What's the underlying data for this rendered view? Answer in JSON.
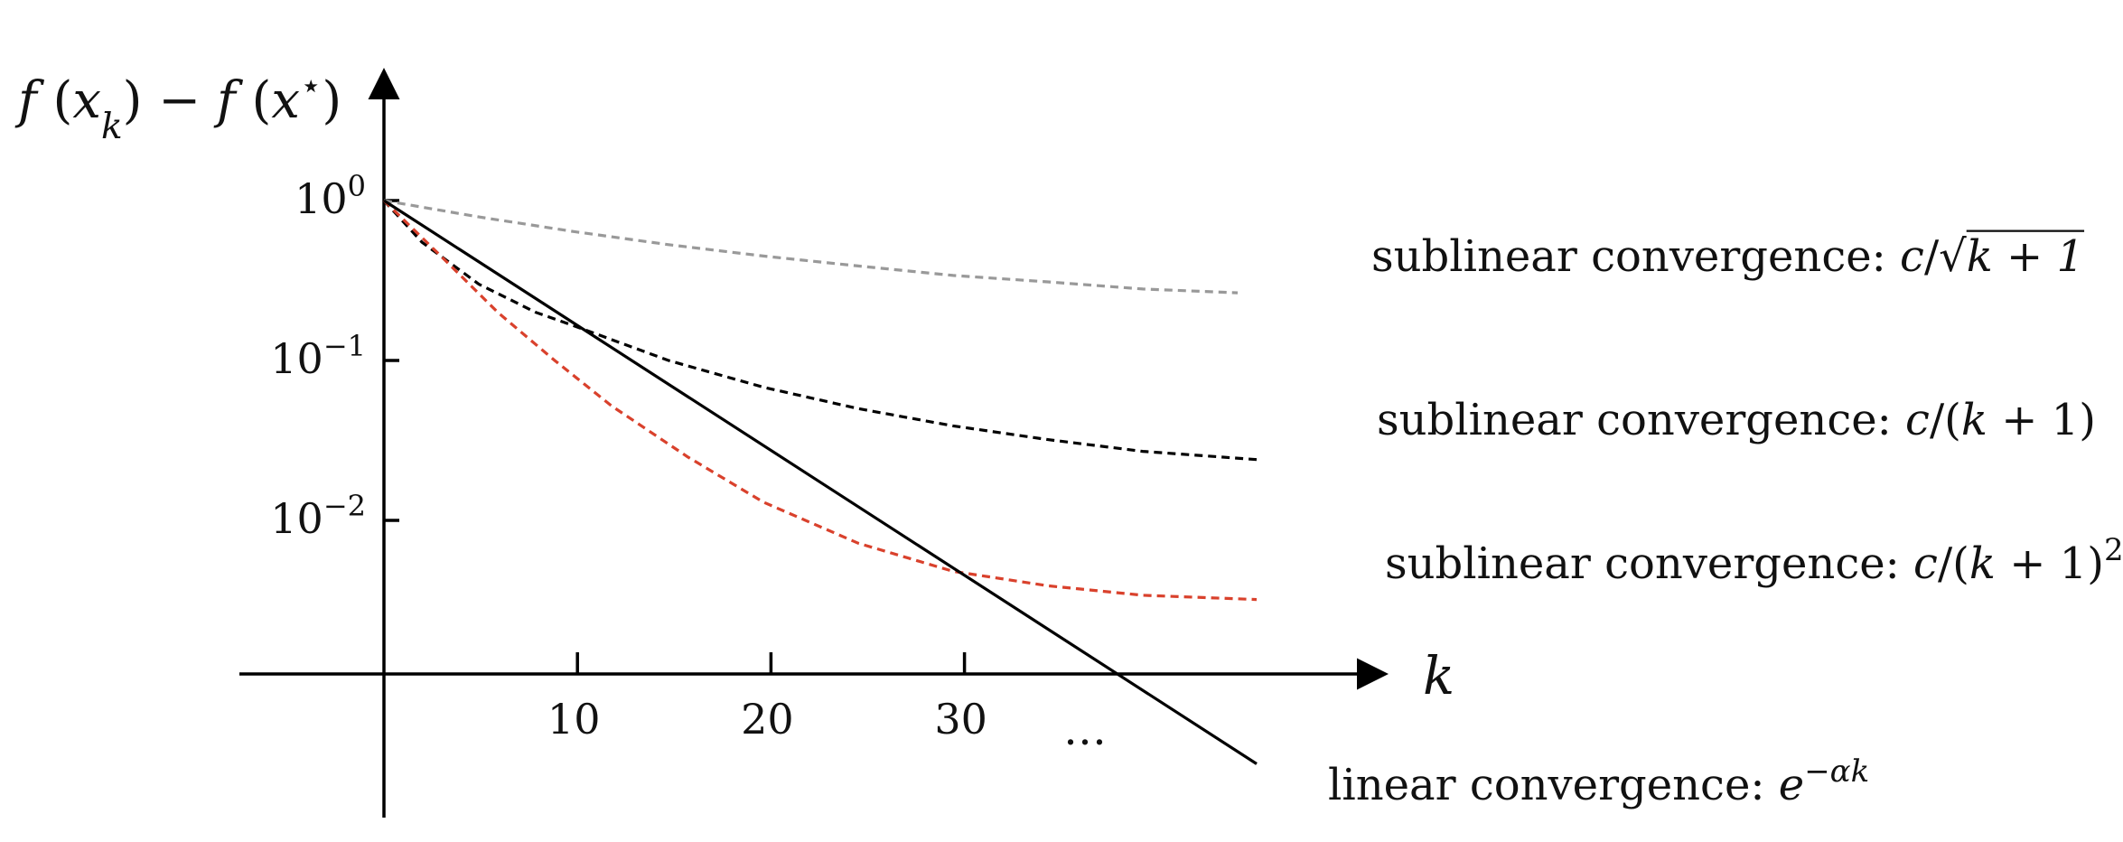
{
  "chart_data": {
    "type": "line",
    "title": "",
    "ylabel": {
      "parts": [
        {
          "t": "f",
          "i": true
        },
        {
          "t": " ("
        },
        {
          "t": "x",
          "i": true
        },
        {
          "t": "k",
          "i": true,
          "sub": true
        },
        {
          "t": ") − "
        },
        {
          "t": "f",
          "i": true
        },
        {
          "t": " ("
        },
        {
          "t": "x",
          "i": true
        },
        {
          "t": "⋆",
          "sup": true
        },
        {
          "t": ")"
        }
      ]
    },
    "xlabel": "k",
    "y_scale": "log",
    "y_ticks": [
      {
        "value": 1,
        "base": "10",
        "exp": "0"
      },
      {
        "value": 0.1,
        "base": "10",
        "exp": "−1"
      },
      {
        "value": 0.01,
        "base": "10",
        "exp": "−2"
      }
    ],
    "x_ticks": [
      10,
      20,
      30
    ],
    "x_ellipsis": "…",
    "xlim": [
      0,
      48
    ],
    "series": [
      {
        "id": "sqrt",
        "style": "dashed",
        "color": "#999999",
        "points": [
          [
            0,
            1.0
          ],
          [
            5,
            0.79
          ],
          [
            10,
            0.64
          ],
          [
            15,
            0.53
          ],
          [
            20,
            0.45
          ],
          [
            25,
            0.39
          ],
          [
            30,
            0.34
          ],
          [
            35,
            0.31
          ],
          [
            40,
            0.28
          ],
          [
            45,
            0.265
          ]
        ],
        "label": [
          {
            "t": "sublinear convergence: "
          },
          {
            "t": "c",
            "i": true
          },
          {
            "t": "/√"
          },
          {
            "t": "k + 1",
            "i": true,
            "over": true
          }
        ]
      },
      {
        "id": "inv",
        "style": "dashed",
        "color": "#000000",
        "points": [
          [
            0,
            1.0
          ],
          [
            2,
            0.55
          ],
          [
            5,
            0.3
          ],
          [
            8,
            0.2
          ],
          [
            10,
            0.165
          ],
          [
            15,
            0.1
          ],
          [
            20,
            0.068
          ],
          [
            25,
            0.05
          ],
          [
            30,
            0.039
          ],
          [
            35,
            0.032
          ],
          [
            40,
            0.027
          ],
          [
            46,
            0.024
          ]
        ],
        "label": [
          {
            "t": "sublinear convergence: "
          },
          {
            "t": "c",
            "i": true
          },
          {
            "t": "/("
          },
          {
            "t": "k",
            "i": true
          },
          {
            "t": " + 1)"
          }
        ]
      },
      {
        "id": "inv2",
        "style": "dashed",
        "color": "#d9412c",
        "points": [
          [
            0,
            1.0
          ],
          [
            3,
            0.45
          ],
          [
            6,
            0.2
          ],
          [
            9,
            0.1
          ],
          [
            12,
            0.052
          ],
          [
            16,
            0.025
          ],
          [
            20,
            0.013
          ],
          [
            25,
            0.0072
          ],
          [
            30,
            0.0048
          ],
          [
            35,
            0.0039
          ],
          [
            40,
            0.0034
          ],
          [
            46,
            0.0032
          ]
        ],
        "label": [
          {
            "t": "sublinear convergence: "
          },
          {
            "t": "c",
            "i": true
          },
          {
            "t": "/("
          },
          {
            "t": "k",
            "i": true
          },
          {
            "t": " + 1)"
          },
          {
            "t": "2",
            "sup": true
          }
        ]
      },
      {
        "id": "exp",
        "style": "solid",
        "color": "#000000",
        "points": [
          [
            0,
            1.0
          ],
          [
            46,
            0.0003
          ]
        ],
        "label": [
          {
            "t": "linear convergence: "
          },
          {
            "t": "e",
            "i": true
          },
          {
            "t": "−αk",
            "i": true,
            "sup": true
          }
        ]
      }
    ]
  }
}
